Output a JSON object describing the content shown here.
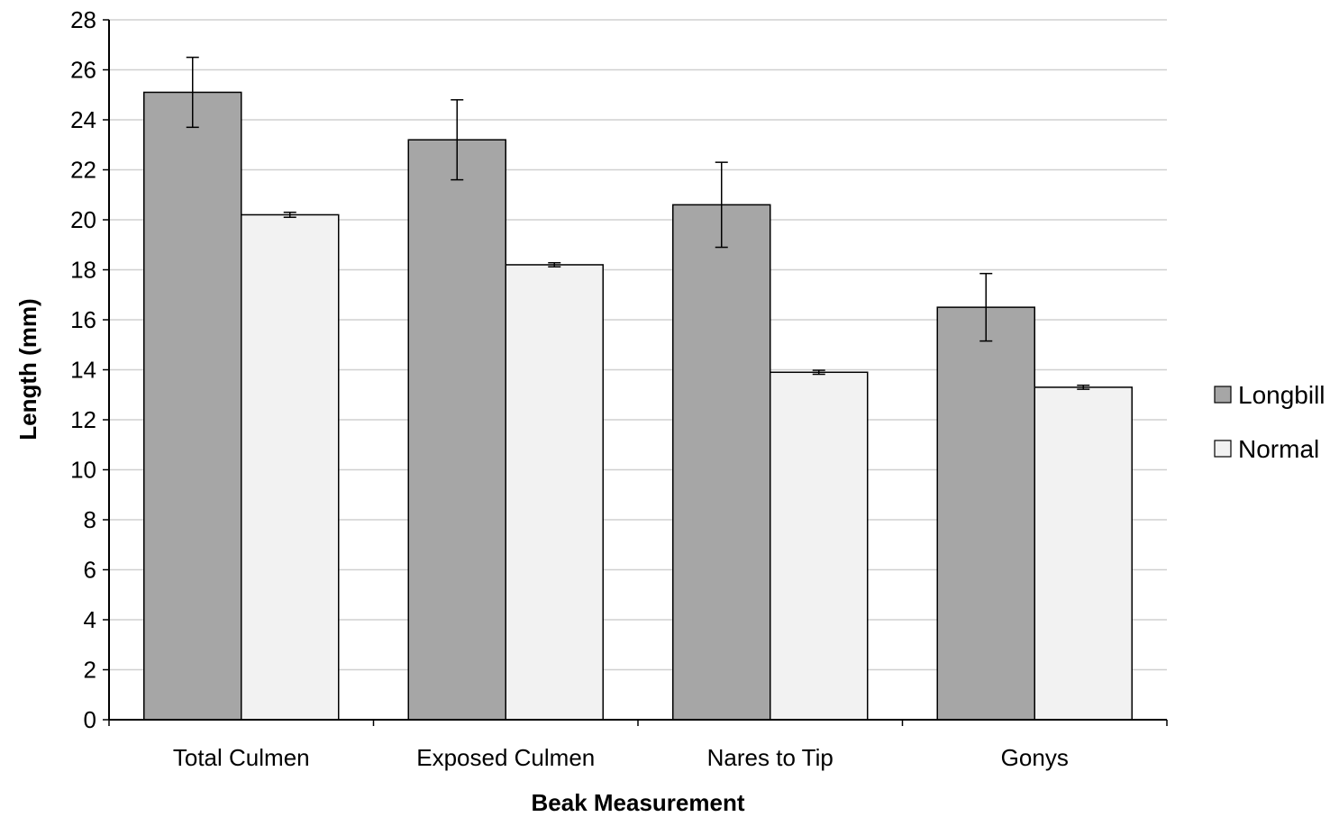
{
  "chart_data": {
    "type": "bar",
    "title": "",
    "xlabel": "Beak Measurement",
    "ylabel": "Length (mm)",
    "ylim": [
      0,
      28
    ],
    "ytick_step": 2,
    "grid": true,
    "legend_position": "right",
    "categories": [
      "Total Culmen",
      "Exposed Culmen",
      "Nares to Tip",
      "Gonys"
    ],
    "series": [
      {
        "name": "Longbill",
        "color": "#a6a6a6",
        "values": [
          25.1,
          23.2,
          20.6,
          16.5
        ],
        "error": [
          1.4,
          1.6,
          1.7,
          1.35
        ]
      },
      {
        "name": "Normal",
        "color": "#f2f2f2",
        "values": [
          20.2,
          18.2,
          13.9,
          13.3
        ],
        "error": [
          0.1,
          0.08,
          0.08,
          0.08
        ]
      }
    ]
  }
}
